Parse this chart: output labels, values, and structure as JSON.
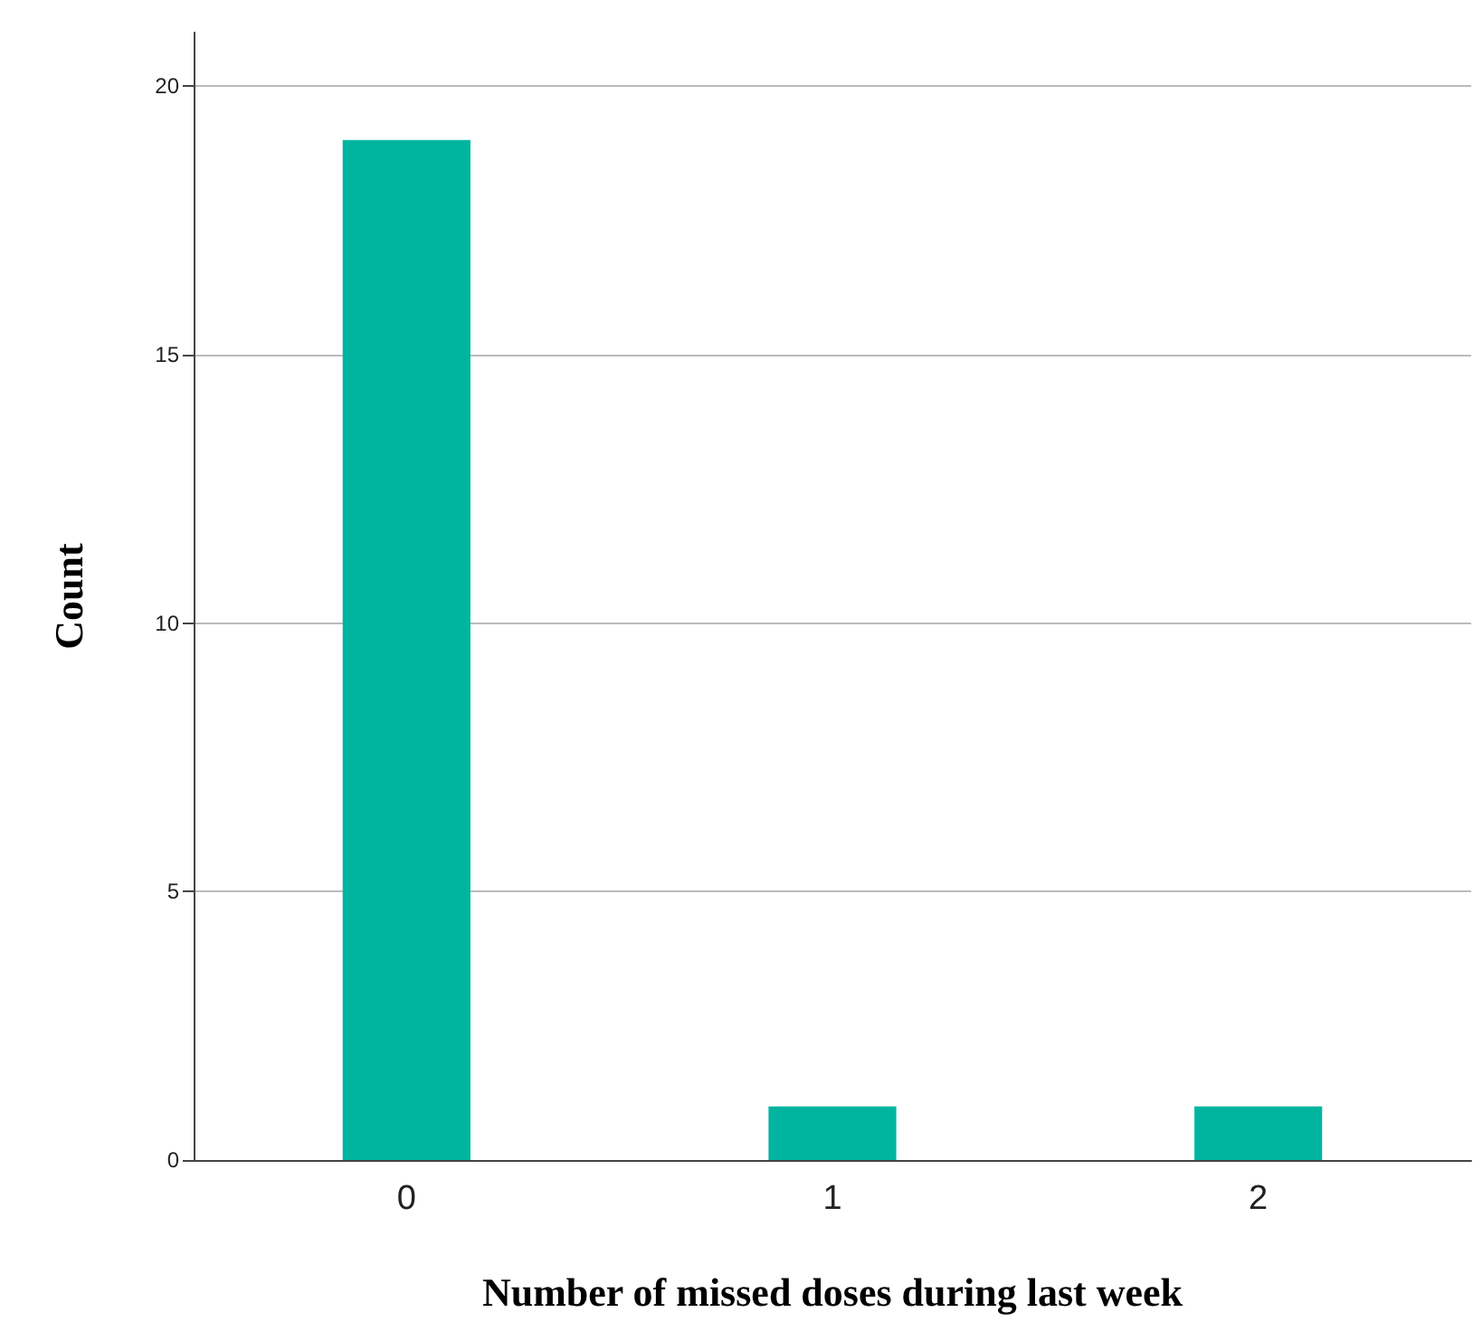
{
  "chart_data": {
    "type": "bar",
    "xlabel": "Number of missed doses during last week",
    "ylabel": "Count",
    "categories": [
      "0",
      "1",
      "2"
    ],
    "values": [
      19,
      1,
      1
    ],
    "color": "#00b5a0",
    "ylim": [
      0,
      21
    ],
    "yticks": [
      0,
      5,
      10,
      15,
      20
    ],
    "grid": "y"
  }
}
